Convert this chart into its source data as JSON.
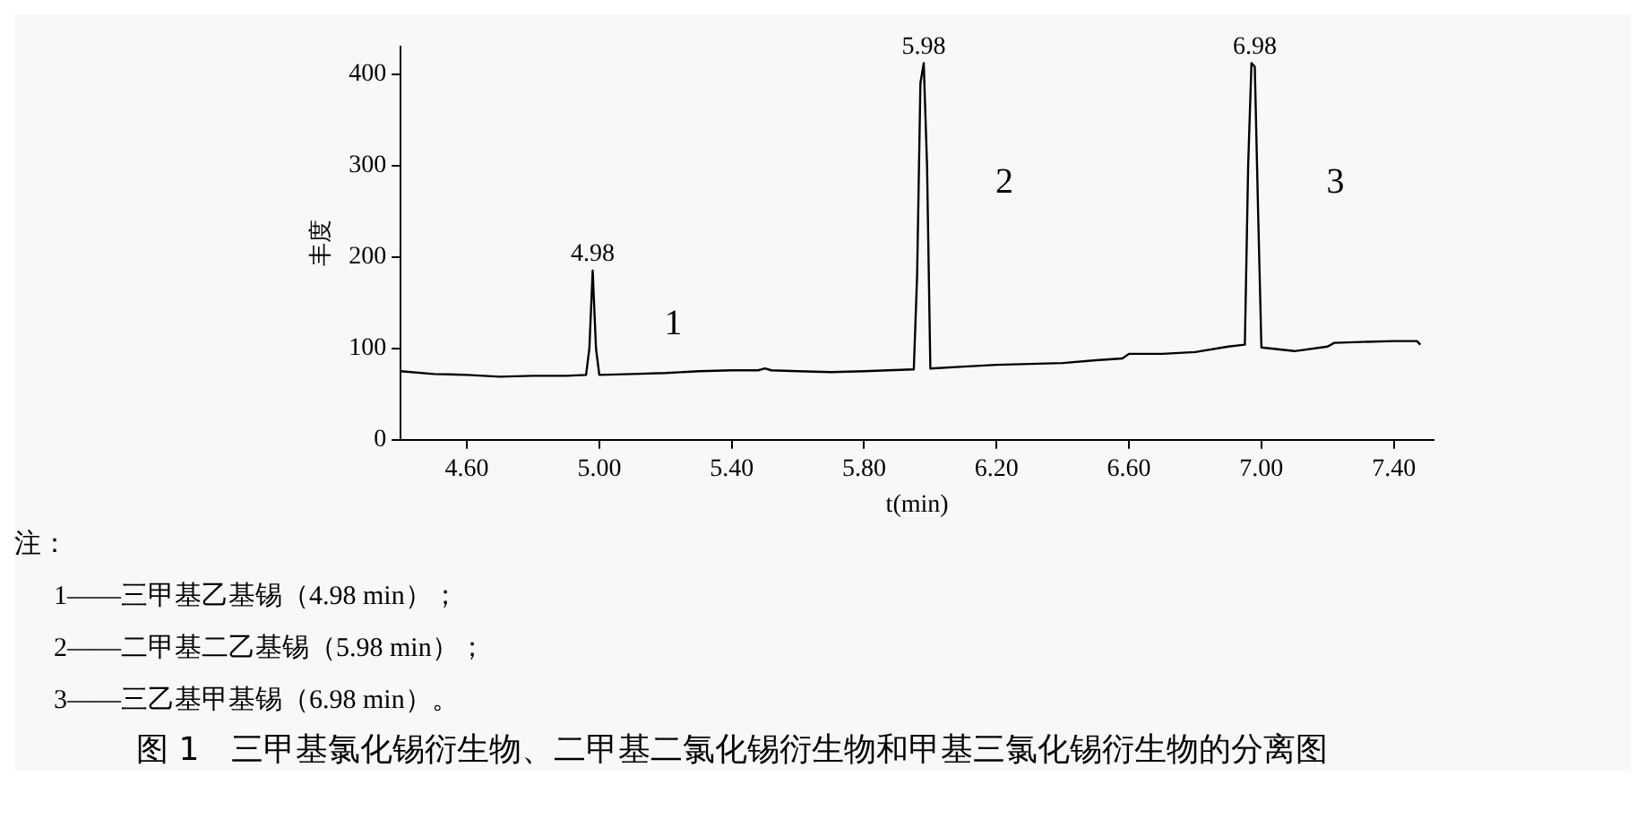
{
  "chart_data": {
    "type": "line",
    "title": "图 1　三甲基氯化锡衍生物、二甲基二氯化锡衍生物和甲基三氯化锡衍生物的分离图",
    "xlabel": "t(min)",
    "ylabel": "丰度",
    "x": [
      4.4,
      4.5,
      4.6,
      4.7,
      4.8,
      4.9,
      4.96,
      4.97,
      4.98,
      4.99,
      5.0,
      5.1,
      5.2,
      5.3,
      5.4,
      5.48,
      5.5,
      5.52,
      5.6,
      5.7,
      5.8,
      5.95,
      5.96,
      5.97,
      5.98,
      5.99,
      6.0,
      6.1,
      6.2,
      6.3,
      6.4,
      6.5,
      6.58,
      6.6,
      6.7,
      6.8,
      6.9,
      6.95,
      6.96,
      6.97,
      6.98,
      6.99,
      7.0,
      7.1,
      7.2,
      7.22,
      7.3,
      7.4,
      7.47,
      7.48
    ],
    "series": [
      {
        "color": "#000000",
        "values": [
          75,
          72,
          71,
          69,
          70,
          70,
          71,
          100,
          185,
          100,
          71,
          72,
          73,
          75,
          76,
          76,
          78,
          76,
          75,
          74,
          75,
          77,
          180,
          390,
          412,
          300,
          78,
          80,
          82,
          83,
          84,
          87,
          89,
          94,
          94,
          96,
          102,
          104,
          300,
          412,
          408,
          250,
          101,
          97,
          102,
          106,
          107,
          108,
          108,
          104
        ]
      }
    ],
    "xlim": [
      4.4,
      7.52
    ],
    "ylim": [
      0,
      430
    ],
    "xticks": [
      {
        "value": 4.6,
        "label": "4.60"
      },
      {
        "value": 5.0,
        "label": "5.00"
      },
      {
        "value": 5.4,
        "label": "5.40"
      },
      {
        "value": 5.8,
        "label": "5.80"
      },
      {
        "value": 6.2,
        "label": "6.20"
      },
      {
        "value": 6.6,
        "label": "6.60"
      },
      {
        "value": 7.0,
        "label": "7.00"
      },
      {
        "value": 7.4,
        "label": "7.40"
      }
    ],
    "yticks": [
      0,
      100,
      200,
      300,
      400
    ],
    "grid": false,
    "legend": false,
    "marker": "none",
    "line_style": "solid",
    "annotations": [
      {
        "text": "4.98",
        "x": 4.98,
        "y": 185
      },
      {
        "text": "5.98",
        "x": 5.98,
        "y": 412
      },
      {
        "text": "6.98",
        "x": 6.98,
        "y": 412
      },
      "1",
      "2",
      "3",
      "注：",
      "1——三甲基乙基锡（4.98 min）；",
      "2——二甲基二乙基锡（5.98 min）；",
      "3——三乙基甲基锡（6.98 min）。"
    ]
  }
}
